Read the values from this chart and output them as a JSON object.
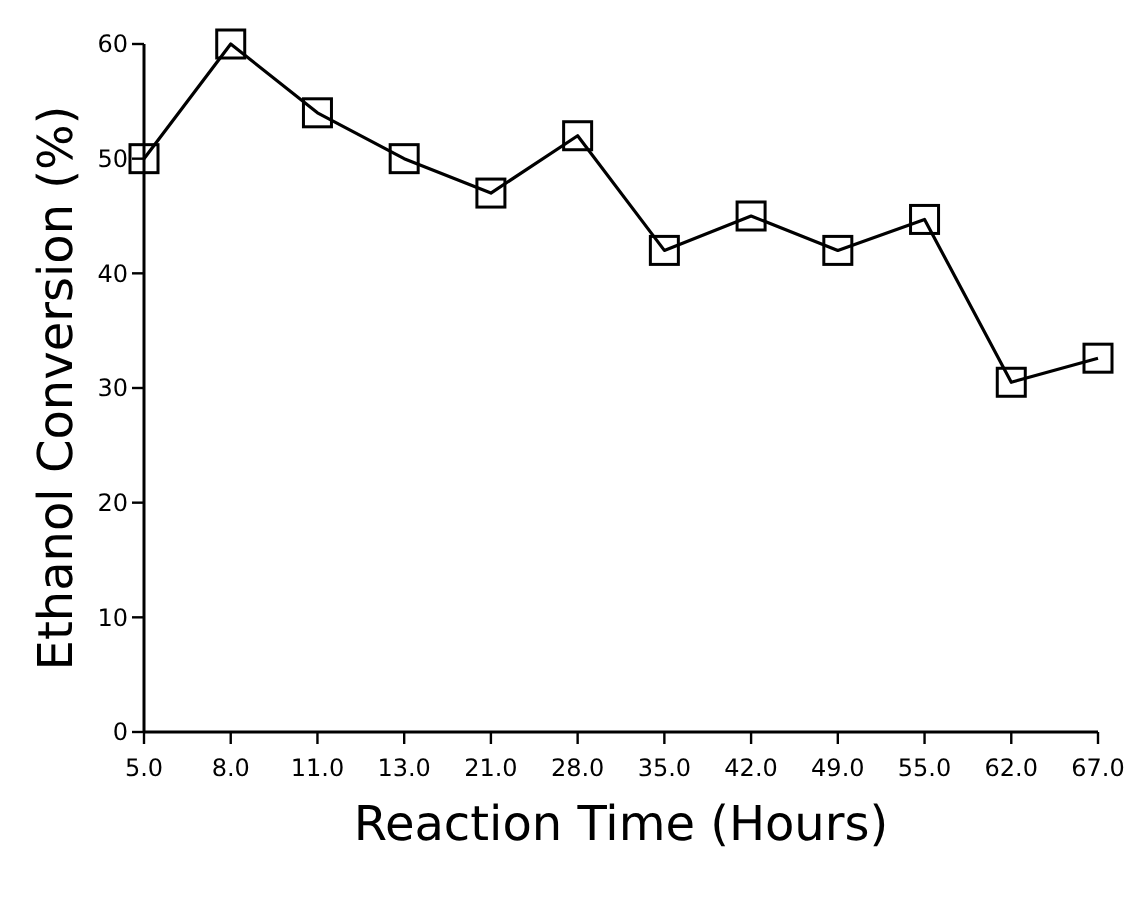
{
  "chart_data": {
    "type": "line",
    "xlabel": "Reaction Time (Hours)",
    "ylabel": "Ethanol Conversion (%)",
    "categories": [
      "5.0",
      "8.0",
      "11.0",
      "13.0",
      "21.0",
      "28.0",
      "35.0",
      "42.0",
      "49.0",
      "55.0",
      "62.0",
      "67.0"
    ],
    "series": [
      {
        "color": "#000000",
        "values": [
          50,
          60,
          54,
          50,
          47,
          52,
          42,
          45,
          42,
          44.7,
          30.5,
          32.6
        ]
      }
    ],
    "ylim": [
      0,
      60
    ],
    "yticks": [
      0,
      10,
      20,
      30,
      40,
      50,
      60
    ],
    "marker": "square",
    "line_style": "solid",
    "grid": false
  }
}
